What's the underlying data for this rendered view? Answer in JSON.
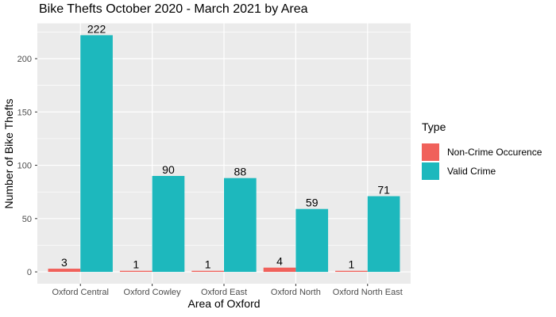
{
  "title": "Bike Thefts October 2020 - March 2021 by Area",
  "chart_data": {
    "type": "bar",
    "title": "Bike Thefts October 2020 - March 2021 by Area",
    "categories": [
      "Oxford Central",
      "Oxford Cowley",
      "Oxford East",
      "Oxford North",
      "Oxford North East"
    ],
    "series": [
      {
        "name": "Non-Crime Occurence",
        "color": "#F0615B",
        "values": [
          3,
          1,
          1,
          4,
          1
        ]
      },
      {
        "name": "Valid Crime",
        "color": "#1DB8BD",
        "values": [
          222,
          90,
          88,
          59,
          71
        ]
      }
    ],
    "xlabel": "Area of Oxford",
    "ylabel": "Number of Bike Thefts",
    "ylim": [
      0,
      222
    ],
    "y_ticks": [
      0,
      50,
      100,
      150,
      200
    ],
    "y_minor_ticks": [
      25,
      75,
      125,
      175,
      225
    ],
    "bar_value_labels": true,
    "grid": true,
    "legend_title": "Type",
    "legend_position": "right",
    "colors": {
      "panel_bg": "#EBEBEB",
      "grid": "#FFFFFF",
      "tick": "#333333",
      "tick_label": "#4D4D4D",
      "text": "#000000"
    }
  }
}
